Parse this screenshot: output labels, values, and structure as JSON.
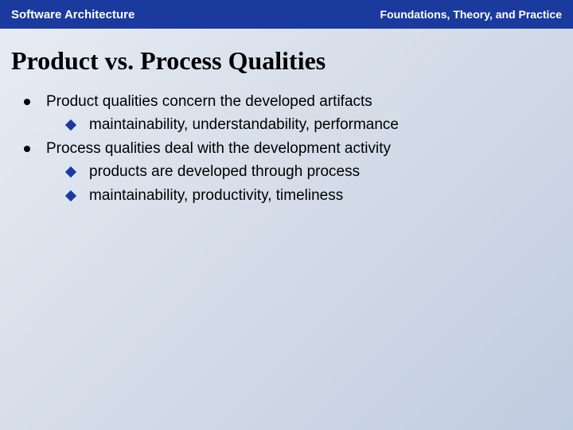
{
  "header": {
    "left": "Software Architecture",
    "right": "Foundations, Theory, and Practice"
  },
  "title": "Product vs. Process Qualities",
  "bullets": [
    {
      "text": "Product qualities concern the developed artifacts",
      "subs": [
        "maintainability, understandability, performance"
      ]
    },
    {
      "text": "Process qualities deal with the development activity",
      "subs": [
        "products are developed through process",
        "maintainability, productivity, timeliness"
      ]
    }
  ],
  "colors": {
    "header_bg": "#1a3a9e",
    "header_text": "#ffffff",
    "title_color": "#000000",
    "body_text": "#000000",
    "bullet_circle": "#000000",
    "diamond": "#1a3a9e",
    "bg_gradient_start": "#e8ecf4",
    "bg_gradient_end": "#c0cce0"
  },
  "typography": {
    "header_left_size": 15,
    "header_right_size": 14,
    "title_size": 32,
    "body_size": 19,
    "title_family": "Georgia, serif",
    "body_family": "Arial, sans-serif"
  }
}
